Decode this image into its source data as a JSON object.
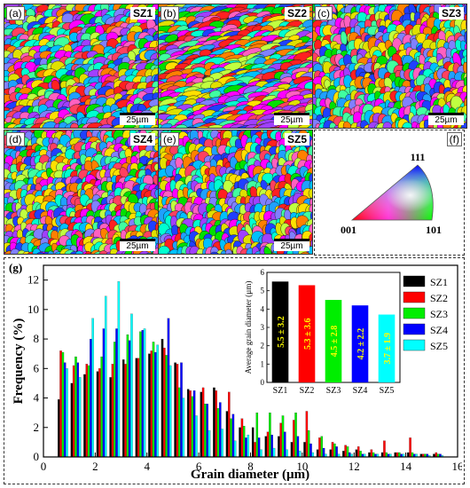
{
  "panels": [
    {
      "label": "(a)",
      "name": "SZ1",
      "scale": "25µm"
    },
    {
      "label": "(b)",
      "name": "SZ2",
      "scale": "25µm"
    },
    {
      "label": "(c)",
      "name": "SZ3",
      "scale": "25µm"
    },
    {
      "label": "(d)",
      "name": "SZ4",
      "scale": "25µm"
    },
    {
      "label": "(e)",
      "name": "SZ5",
      "scale": "25µm"
    }
  ],
  "ipf": {
    "label": "(f)",
    "corner_top": "111",
    "corner_left": "001",
    "corner_right": "101"
  },
  "chart_panel_label": "(g)",
  "chart_data": {
    "type": "bar",
    "xlabel": "Grain diameter (µm)",
    "ylabel": "Frequency (%)",
    "xlim": [
      0,
      16
    ],
    "ylim": [
      0,
      13
    ],
    "xticks": [
      0,
      2,
      4,
      6,
      8,
      10,
      12,
      14,
      16
    ],
    "yticks": [
      0,
      2,
      4,
      6,
      8,
      10,
      12
    ],
    "bin_centers": [
      0.75,
      1.25,
      1.75,
      2.25,
      2.75,
      3.25,
      3.75,
      4.25,
      4.75,
      5.25,
      5.75,
      6.25,
      6.75,
      7.25,
      7.75,
      8.25,
      8.75,
      9.25,
      9.75,
      10.25,
      10.75,
      11.25,
      11.75,
      12.25,
      12.75,
      13.25,
      13.75,
      14.25,
      14.75,
      15.25
    ],
    "series": [
      {
        "name": "SZ1",
        "color": "#000000",
        "values": [
          3.9,
          5.0,
          5.6,
          5.8,
          5.4,
          6.6,
          6.7,
          7.0,
          8.0,
          6.4,
          4.6,
          4.4,
          4.7,
          3.1,
          2.0,
          2.0,
          1.4,
          1.4,
          1.0,
          1.0,
          0.5,
          0.5,
          0.4,
          0.5,
          0.3,
          0.3,
          0.3,
          0.3,
          0.2,
          0.2
        ]
      },
      {
        "name": "SZ2",
        "color": "#ff0000",
        "values": [
          7.2,
          6.2,
          6.3,
          6.0,
          6.3,
          6.3,
          6.7,
          7.2,
          7.4,
          6.3,
          4.5,
          4.7,
          4.5,
          4.4,
          2.6,
          1.0,
          1.7,
          2.3,
          2.5,
          3.1,
          1.3,
          1.0,
          0.8,
          0.7,
          0.5,
          1.1,
          0.3,
          1.3,
          0.2,
          0.3
        ]
      },
      {
        "name": "SZ3",
        "color": "#00ee00",
        "values": [
          7.1,
          6.8,
          6.2,
          6.8,
          7.8,
          8.3,
          8.5,
          7.8,
          6.9,
          4.7,
          4.1,
          3.6,
          3.3,
          2.6,
          2.1,
          3.0,
          3.0,
          2.8,
          3.0,
          1.8,
          1.4,
          0.9,
          0.7,
          0.4,
          0.3,
          0.3,
          0.3,
          0.3,
          0.2,
          0.2
        ]
      },
      {
        "name": "SZ4",
        "color": "#0000ff",
        "values": [
          6.4,
          6.4,
          8.0,
          8.7,
          8.7,
          7.9,
          8.6,
          7.1,
          9.4,
          6.4,
          4.5,
          3.6,
          3.7,
          2.9,
          1.3,
          1.3,
          1.5,
          1.7,
          1.4,
          0.9,
          0.6,
          0.7,
          0.3,
          0.2,
          0.2,
          0.2,
          0.2,
          0.2,
          0.2,
          0.2
        ]
      },
      {
        "name": "SZ5",
        "color": "#00ffff",
        "values": [
          6.0,
          5.4,
          9.4,
          10.9,
          11.9,
          9.7,
          8.7,
          7.6,
          6.2,
          4.0,
          2.8,
          1.8,
          1.9,
          1.1,
          1.5,
          0.5,
          0.6,
          0.5,
          0.4,
          0.3,
          0.2,
          0.2,
          0.2,
          0.2,
          0.2,
          0.2,
          0.2,
          0.2,
          0.1,
          0.1
        ]
      }
    ],
    "inset": {
      "type": "bar",
      "ylabel": "Average grain diameter (µm)",
      "ylim": [
        0,
        6
      ],
      "yticks": [
        0,
        1,
        2,
        3,
        4,
        5,
        6
      ],
      "categories": [
        "SZ1",
        "SZ2",
        "SZ3",
        "SZ4",
        "SZ5"
      ],
      "values": [
        5.5,
        5.3,
        4.5,
        4.2,
        3.7
      ],
      "labels": [
        "5.5 ± 3.2",
        "5.3 ± 3.6",
        "4.5 ± 2.8",
        "4.2 ± 2.2",
        "3.7 ± 1.9"
      ],
      "colors": [
        "#000000",
        "#ff0000",
        "#00ee00",
        "#0000ff",
        "#00ffff"
      ]
    }
  }
}
